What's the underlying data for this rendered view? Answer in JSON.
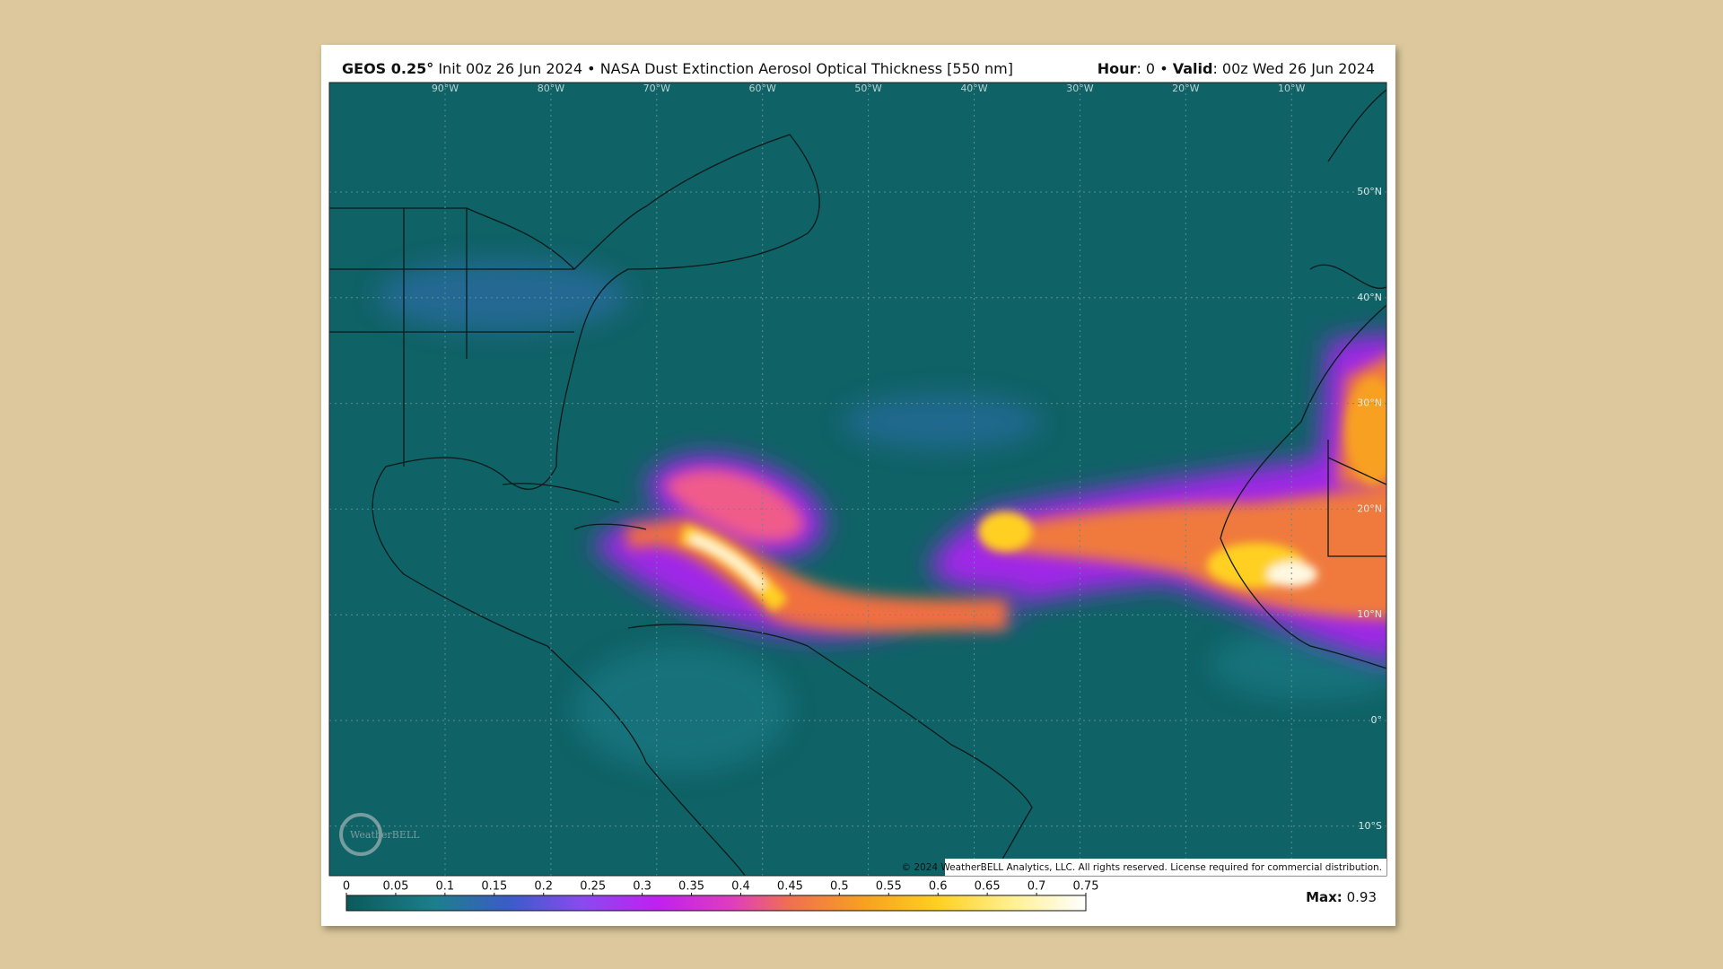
{
  "header": {
    "model": "GEOS 0.25°",
    "description": "Init 00z 26 Jun 2024 • NASA Dust Extinction Aerosol Optical Thickness [550 nm]",
    "hour_label": "Hour",
    "hour_text": ": 0 • ",
    "valid_label": "Valid",
    "valid_text": ": 00z Wed 26 Jun 2024"
  },
  "map": {
    "longitude_labels": [
      "90°W",
      "80°W",
      "70°W",
      "60°W",
      "50°W",
      "40°W",
      "30°W",
      "20°W",
      "10°W"
    ],
    "latitude_labels": [
      "50°N",
      "40°N",
      "30°N",
      "20°N",
      "10°N",
      "0°",
      "10°S"
    ],
    "copyright": "© 2024 WeatherBELL Analytics, LLC. All rights reserved. License required for commercial distribution.",
    "logo": "WeatherBELL"
  },
  "colorbar": {
    "ticks": [
      0,
      0.05,
      0.1,
      0.15,
      0.2,
      0.25,
      0.3,
      0.35,
      0.4,
      0.45,
      0.5,
      0.55,
      0.6,
      0.65,
      0.7,
      0.75
    ],
    "max_label": "Max:",
    "max_value": 0.93
  }
}
